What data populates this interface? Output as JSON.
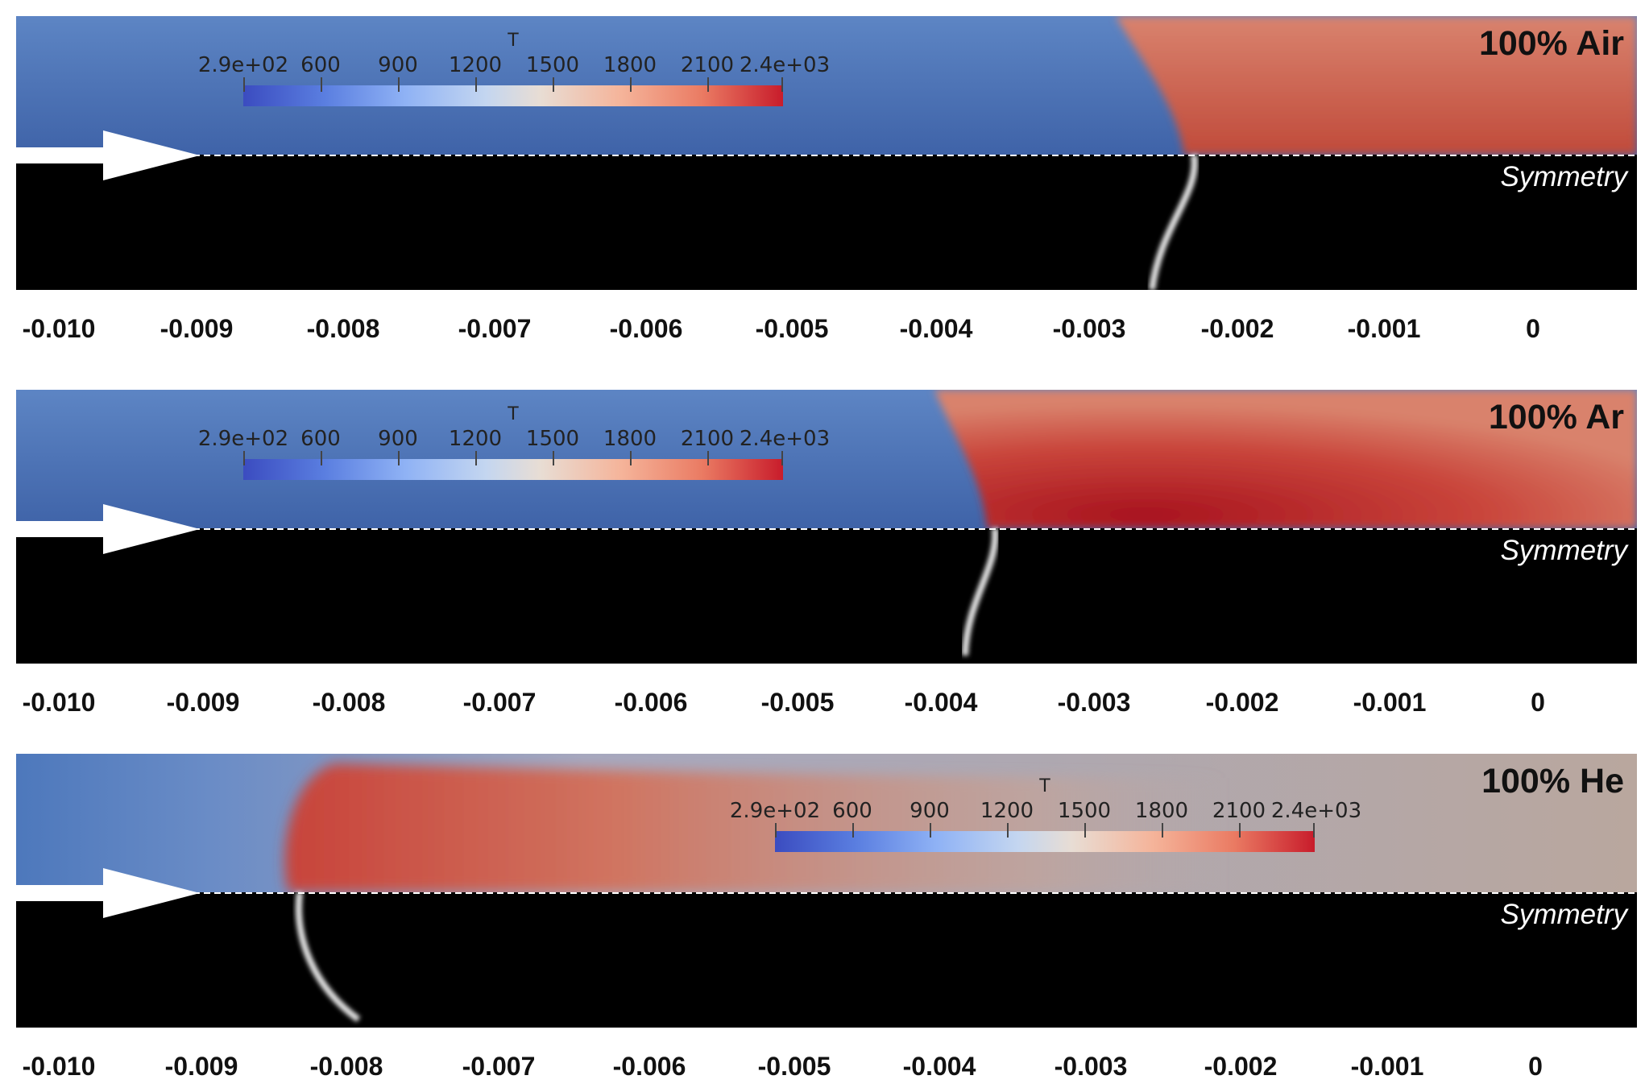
{
  "panels": [
    {
      "case_label": "100% Air",
      "symmetry_label": "Symmetry",
      "flame_front_x": -0.0023,
      "colorbar": {
        "title": "T",
        "tick_labels": [
          "2.9e+02",
          "600",
          "900",
          "1200",
          "1500",
          "1800",
          "2100",
          "2.4e+03"
        ]
      },
      "x_axis": {
        "tick_labels": [
          "-0.010",
          "-0.009",
          "-0.008",
          "-0.007",
          "-0.006",
          "-0.005",
          "-0.004",
          "-0.003",
          "-0.002",
          "-0.001",
          "0"
        ]
      }
    },
    {
      "case_label": "100% Ar",
      "symmetry_label": "Symmetry",
      "flame_front_x": -0.0038,
      "colorbar": {
        "title": "T",
        "tick_labels": [
          "2.9e+02",
          "600",
          "900",
          "1200",
          "1500",
          "1800",
          "2100",
          "2.4e+03"
        ]
      },
      "x_axis": {
        "tick_labels": [
          "-0.010",
          "-0.009",
          "-0.008",
          "-0.007",
          "-0.006",
          "-0.005",
          "-0.004",
          "-0.003",
          "-0.002",
          "-0.001",
          "0"
        ]
      }
    },
    {
      "case_label": "100% He",
      "symmetry_label": "Symmetry",
      "flame_front_x": -0.0083,
      "colorbar": {
        "title": "T",
        "tick_labels": [
          "2.9e+02",
          "600",
          "900",
          "1200",
          "1500",
          "1800",
          "2100",
          "2.4e+03"
        ]
      },
      "x_axis": {
        "tick_labels": [
          "-0.010",
          "-0.009",
          "-0.008",
          "-0.007",
          "-0.006",
          "-0.005",
          "-0.004",
          "-0.003",
          "-0.002",
          "-0.001",
          "0"
        ]
      }
    }
  ],
  "colors": {
    "cold": "#4a72b5",
    "hot": "#c24a3c",
    "background_lower": "#000000"
  }
}
